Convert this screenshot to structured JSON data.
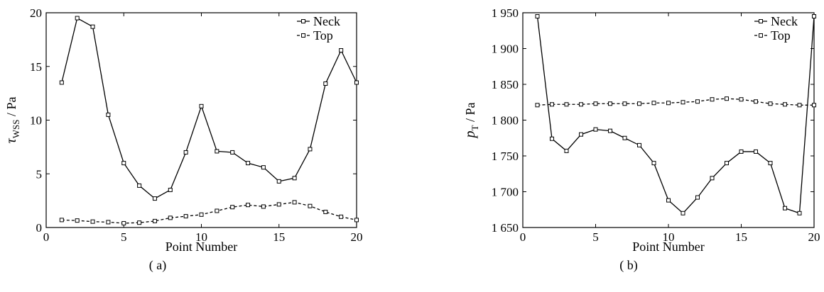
{
  "chart_data": [
    {
      "type": "line",
      "panel_label": "( a)",
      "xlabel": "Point Number",
      "ylabel": "τ",
      "ylabel_sub": "WSS",
      "ylabel_unit": " / Pa",
      "xlim": [
        0,
        20
      ],
      "ylim": [
        0,
        20
      ],
      "xticks": [
        0,
        5,
        10,
        15,
        20
      ],
      "yticks": [
        0,
        5,
        10,
        15,
        20
      ],
      "xtick_labels": [
        "0",
        "5",
        "10",
        "15",
        "20"
      ],
      "ytick_labels": [
        "0",
        "5",
        "10",
        "15",
        "20"
      ],
      "legend_position": "top-right",
      "x": [
        1,
        2,
        3,
        4,
        5,
        6,
        7,
        8,
        9,
        10,
        11,
        12,
        13,
        14,
        15,
        16,
        17,
        18,
        19,
        20
      ],
      "series": [
        {
          "name": "Neck",
          "style": "solid",
          "values": [
            13.5,
            19.5,
            18.7,
            10.5,
            6.0,
            3.9,
            2.7,
            3.5,
            7.0,
            11.3,
            7.1,
            7.0,
            6.0,
            5.6,
            4.3,
            4.6,
            7.3,
            13.4,
            16.5,
            13.5
          ]
        },
        {
          "name": "Top",
          "style": "dashed",
          "values": [
            0.7,
            0.65,
            0.55,
            0.5,
            0.4,
            0.45,
            0.6,
            0.9,
            1.05,
            1.2,
            1.55,
            1.9,
            2.1,
            1.95,
            2.15,
            2.35,
            2.0,
            1.45,
            1.0,
            0.7
          ]
        }
      ]
    },
    {
      "type": "line",
      "panel_label": "( b)",
      "xlabel": "Point Number",
      "ylabel": "p",
      "ylabel_sub": "T",
      "ylabel_unit": " / Pa",
      "xlim": [
        0,
        20
      ],
      "ylim": [
        1650,
        1950
      ],
      "xticks": [
        0,
        5,
        10,
        15,
        20
      ],
      "yticks": [
        1650,
        1700,
        1750,
        1800,
        1850,
        1900,
        1950
      ],
      "xtick_labels": [
        "0",
        "5",
        "10",
        "15",
        "20"
      ],
      "ytick_labels": [
        "1 650",
        "1 700",
        "1 750",
        "1 800",
        "1 850",
        "1 900",
        "1 950"
      ],
      "legend_position": "top-right",
      "x": [
        1,
        2,
        3,
        4,
        5,
        6,
        7,
        8,
        9,
        10,
        11,
        12,
        13,
        14,
        15,
        16,
        17,
        18,
        19,
        20
      ],
      "series": [
        {
          "name": "Neck",
          "style": "solid",
          "values": [
            1945,
            1774,
            1757,
            1780,
            1787,
            1785,
            1775,
            1765,
            1740,
            1688,
            1670,
            1692,
            1719,
            1740,
            1756,
            1756,
            1740,
            1677,
            1670,
            1945
          ]
        },
        {
          "name": "Top",
          "style": "dashed",
          "values": [
            1821,
            1822,
            1822,
            1822,
            1823,
            1823,
            1823,
            1823,
            1824,
            1824,
            1825,
            1826,
            1829,
            1830,
            1829,
            1826,
            1823,
            1822,
            1821,
            1821
          ]
        }
      ]
    }
  ]
}
